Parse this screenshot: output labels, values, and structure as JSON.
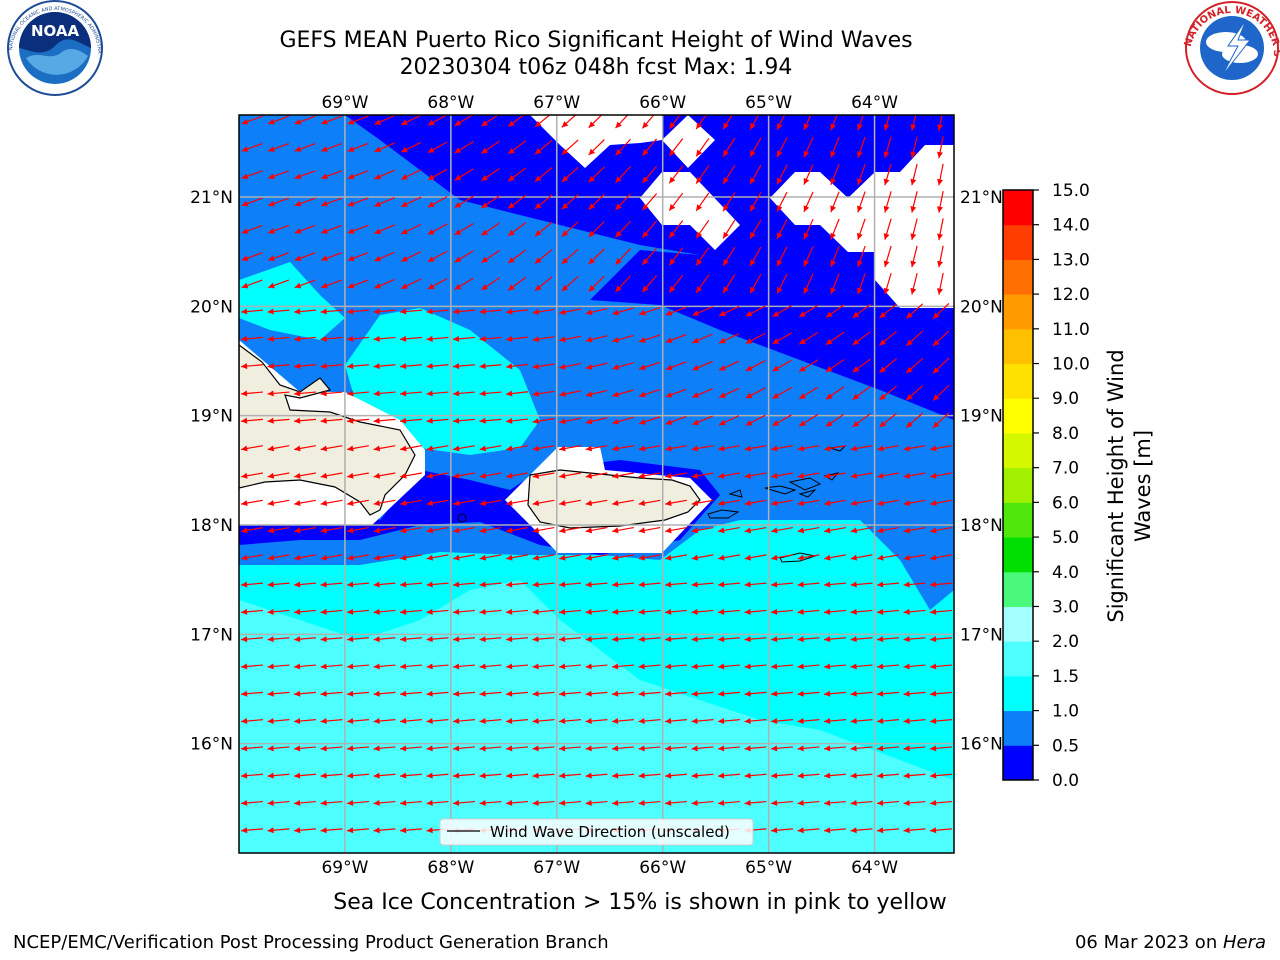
{
  "header": {
    "title_line1": "GEFS MEAN Puerto Rico Significant Height of Wind Waves",
    "title_line2": "20230304 t06z 048h fcst   Max: 1.94"
  },
  "logos": {
    "noaa_text": "NOAA",
    "noaa_ring_text": "NATIONAL OCEANIC AND ATMOSPHERIC ADMINISTRATION · U.S. DEPARTMENT OF COMMERCE",
    "nws_ring_text": "NATIONAL WEATHER SERVICE"
  },
  "map": {
    "lon_ticks": [
      "69°W",
      "68°W",
      "67°W",
      "66°W",
      "65°W",
      "64°W"
    ],
    "lat_ticks": [
      "21°N",
      "20°N",
      "19°N",
      "18°N",
      "17°N",
      "16°N"
    ],
    "lon_values": [
      -69,
      -68,
      -67,
      -66,
      -65,
      -64
    ],
    "lat_values": [
      21,
      20,
      19,
      18,
      17,
      16
    ],
    "lon_range": [
      -70,
      -63.25
    ],
    "lat_range": [
      15,
      21.75
    ],
    "legend_label": "Wind Wave Direction (unscaled)",
    "colors": {
      "land": "#efeedf",
      "arrow": "#ff0000",
      "grid": "#b0b0b0"
    }
  },
  "colorbar": {
    "label_line1": "Significant Height of Wind",
    "label_line2": "Waves [m]",
    "ticks": [
      "0.0",
      "0.5",
      "1.0",
      "1.5",
      "2.0",
      "3.0",
      "4.0",
      "5.0",
      "6.0",
      "7.0",
      "8.0",
      "9.0",
      "10.0",
      "11.0",
      "12.0",
      "13.0",
      "14.0",
      "15.0"
    ],
    "colors": [
      "#0000ff",
      "#0c7ff9",
      "#00ffff",
      "#4dffff",
      "#a4ffff",
      "#4af87b",
      "#00df00",
      "#4ee80c",
      "#a0f000",
      "#d4f800",
      "#ffff00",
      "#ffe100",
      "#ffc000",
      "#ff9b00",
      "#ff6e00",
      "#ff3d00",
      "#ff0000"
    ]
  },
  "note": "Sea Ice Concentration > 15% is shown in pink to yellow",
  "footer": {
    "left": "NCEP/EMC/Verification Post Processing Product Generation Branch",
    "right_prefix": "06 Mar 2023 on ",
    "right_machine": "Hera"
  }
}
